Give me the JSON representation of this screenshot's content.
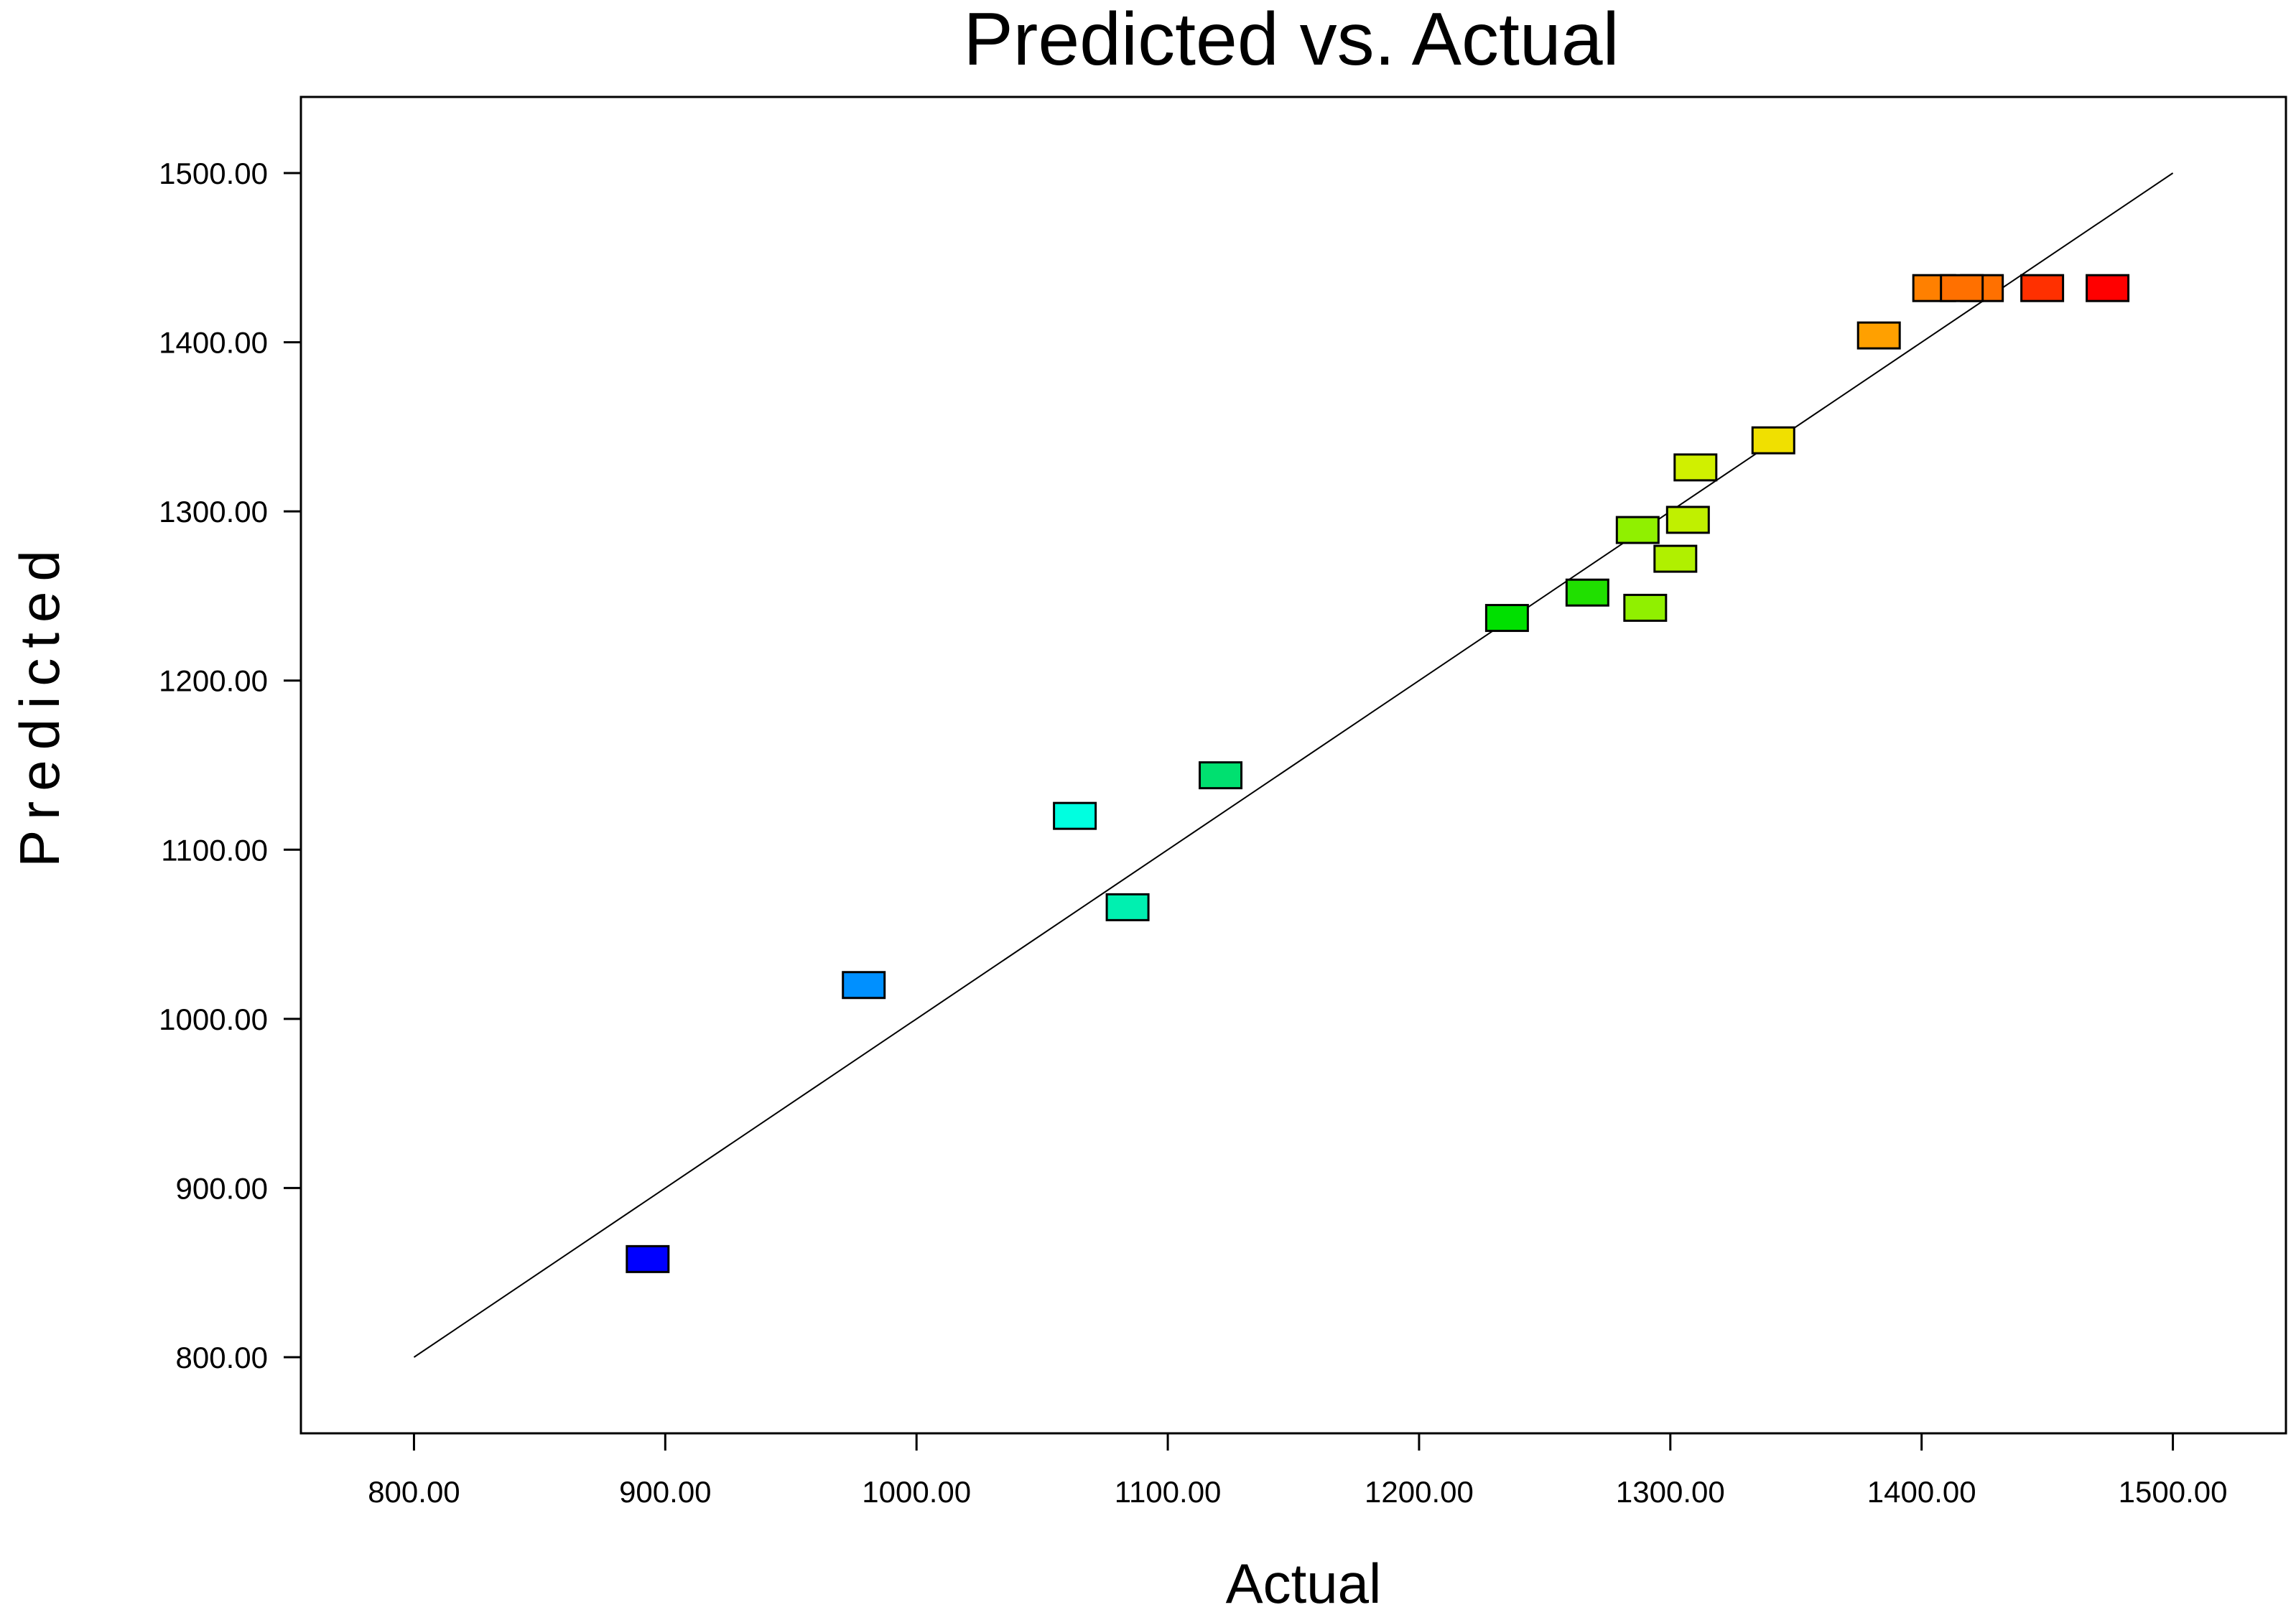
{
  "chart_data": {
    "type": "scatter",
    "title": "Predicted vs. Actual",
    "xlabel": "Actual",
    "ylabel": "Predicted",
    "xlim": [
      755,
      1545
    ],
    "ylim": [
      755,
      1545
    ],
    "x_ticks": [
      800,
      900,
      1000,
      1100,
      1200,
      1300,
      1400,
      1500
    ],
    "y_ticks": [
      800,
      900,
      1000,
      1100,
      1200,
      1300,
      1400,
      1500
    ],
    "x_tick_labels": [
      "800.00",
      "900.00",
      "1000.00",
      "1100.00",
      "1200.00",
      "1300.00",
      "1400.00",
      "1500.00"
    ],
    "y_tick_labels": [
      "800.00",
      "900.00",
      "1000.00",
      "1100.00",
      "1200.00",
      "1300.00",
      "1400.00",
      "1500.00"
    ],
    "grid": false,
    "reference_line": {
      "x": [
        800,
        1500
      ],
      "y": [
        800,
        1500
      ]
    },
    "points": [
      {
        "x": 893,
        "y": 858,
        "color": "#0000ff"
      },
      {
        "x": 979,
        "y": 1020,
        "color": "#0090ff"
      },
      {
        "x": 1063,
        "y": 1120,
        "color": "#00ffe0"
      },
      {
        "x": 1084,
        "y": 1066,
        "color": "#00f0b0"
      },
      {
        "x": 1121,
        "y": 1144,
        "color": "#00e070"
      },
      {
        "x": 1235,
        "y": 1237,
        "color": "#00e000"
      },
      {
        "x": 1267,
        "y": 1252,
        "color": "#20e000"
      },
      {
        "x": 1290,
        "y": 1243,
        "color": "#90f000"
      },
      {
        "x": 1287,
        "y": 1289,
        "color": "#90f000"
      },
      {
        "x": 1302,
        "y": 1272,
        "color": "#b0f000"
      },
      {
        "x": 1307,
        "y": 1295,
        "color": "#c0f000"
      },
      {
        "x": 1310,
        "y": 1326,
        "color": "#d0f000"
      },
      {
        "x": 1341,
        "y": 1342,
        "color": "#f0e000"
      },
      {
        "x": 1383,
        "y": 1404,
        "color": "#ffa000"
      },
      {
        "x": 1405,
        "y": 1432,
        "color": "#ff8000"
      },
      {
        "x": 1424,
        "y": 1432,
        "color": "#ff7000"
      },
      {
        "x": 1416,
        "y": 1432,
        "color": "#ff7000"
      },
      {
        "x": 1448,
        "y": 1432,
        "color": "#ff3000"
      },
      {
        "x": 1474,
        "y": 1432,
        "color": "#ff0000"
      }
    ]
  }
}
